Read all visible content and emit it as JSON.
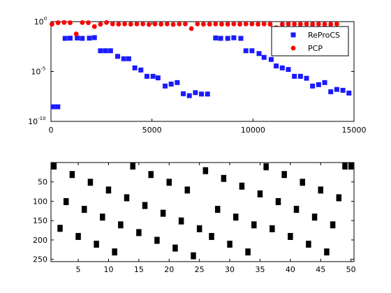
{
  "chart_data": [
    {
      "type": "scatter",
      "yscale": "log",
      "xlim": [
        0,
        15000
      ],
      "ylim": [
        1e-10,
        1
      ],
      "xticks": [
        "0",
        "5000",
        "10000",
        "15000"
      ],
      "yticks": [
        {
          "base": "10",
          "exp": "0"
        },
        {
          "base": "10",
          "exp": "-5"
        },
        {
          "base": "10",
          "exp": "-10"
        }
      ],
      "legend": {
        "placement": "top-right"
      },
      "series": [
        {
          "name": "ReProCS",
          "marker": "square",
          "color": "#1a1aff",
          "x": [
            100,
            340,
            700,
            950,
            1300,
            1550,
            1900,
            2150,
            2450,
            2700,
            2950,
            3300,
            3600,
            3850,
            4150,
            4450,
            4750,
            5050,
            5300,
            5650,
            5950,
            6250,
            6550,
            6850,
            7150,
            7450,
            7750,
            8150,
            8400,
            8750,
            9050,
            9400,
            9650,
            9950,
            10300,
            10550,
            10900,
            11150,
            11450,
            11750,
            12050,
            12350,
            12650,
            12950,
            13250,
            13550,
            13850,
            14150,
            14450,
            14750
          ],
          "y": [
            2.9e-09,
            2.9e-09,
            0.021,
            0.022,
            0.023,
            0.021,
            0.022,
            0.025,
            0.0012,
            0.0012,
            0.0012,
            0.00033,
            0.00019,
            0.00019,
            2.3e-05,
            1.4e-05,
            3.3e-06,
            3.3e-06,
            2.3e-06,
            3.5e-07,
            5.5e-07,
            7.8e-07,
            5.9e-08,
            3.8e-08,
            7.6e-08,
            5.5e-08,
            5.5e-08,
            0.023,
            0.021,
            0.021,
            0.024,
            0.021,
            0.0012,
            0.0012,
            0.00063,
            0.00026,
            0.00016,
            3.6e-05,
            2.3e-05,
            1.6e-05,
            3.3e-06,
            3.3e-06,
            2.1e-06,
            3.5e-07,
            4.8e-07,
            7.8e-07,
            9.3e-08,
            1.6e-07,
            1.3e-07,
            6.9e-08
          ]
        },
        {
          "name": "PCP",
          "marker": "circle",
          "color": "#ff0000",
          "x": [
            50,
            350,
            650,
            950,
            1250,
            1550,
            1850,
            2150,
            2450,
            2750,
            3050,
            3350,
            3650,
            3950,
            4250,
            4550,
            4850,
            5150,
            5450,
            5750,
            6050,
            6350,
            6650,
            6950,
            7250,
            7550,
            7850,
            8150,
            8450,
            8750,
            9050,
            9350,
            9650,
            9950,
            10250,
            10550,
            10850,
            11150,
            11450,
            11750,
            12050,
            12350,
            12650,
            12950,
            13250,
            13550,
            13850,
            14150
          ],
          "y": [
            0.55,
            0.78,
            0.82,
            0.78,
            0.058,
            0.8,
            0.78,
            0.32,
            0.55,
            0.82,
            0.58,
            0.55,
            0.58,
            0.55,
            0.58,
            0.58,
            0.52,
            0.58,
            0.55,
            0.58,
            0.52,
            0.58,
            0.58,
            0.2,
            0.58,
            0.55,
            0.55,
            0.58,
            0.55,
            0.55,
            0.58,
            0.55,
            0.58,
            0.58,
            0.55,
            0.58,
            0.55,
            0.25,
            0.55,
            0.58,
            0.58,
            0.55,
            0.58,
            0.55,
            0.58,
            0.55,
            0.55,
            0.58
          ]
        }
      ]
    },
    {
      "type": "scatter",
      "yscale": "linear",
      "yreversed": true,
      "xlim": [
        0.5,
        50.5
      ],
      "ylim": [
        0,
        256
      ],
      "xticks": [
        "5",
        "10",
        "15",
        "20",
        "25",
        "30",
        "35",
        "40",
        "45",
        "50"
      ],
      "yticks": [
        "50",
        "100",
        "150",
        "200",
        "250"
      ],
      "series": [
        {
          "marker": "square",
          "color": "#000000",
          "x": [
            1,
            2,
            3,
            4,
            5,
            6,
            7,
            8,
            9,
            10,
            11,
            12,
            13,
            14,
            15,
            16,
            17,
            18,
            19,
            20,
            21,
            22,
            23,
            24,
            25,
            26,
            27,
            28,
            29,
            30,
            31,
            32,
            33,
            34,
            35,
            36,
            37,
            38,
            39,
            40,
            41,
            42,
            43,
            44,
            45,
            46,
            47,
            48,
            49,
            50
          ],
          "y": [
            1,
            170,
            101,
            31,
            191,
            121,
            51,
            211,
            141,
            71,
            231,
            161,
            91,
            1,
            181,
            111,
            31,
            201,
            131,
            51,
            221,
            151,
            71,
            241,
            171,
            21,
            191,
            121,
            41,
            211,
            141,
            61,
            231,
            161,
            81,
            11,
            171,
            101,
            31,
            191,
            121,
            51,
            211,
            141,
            71,
            231,
            161,
            91,
            1,
            1
          ]
        }
      ]
    }
  ]
}
